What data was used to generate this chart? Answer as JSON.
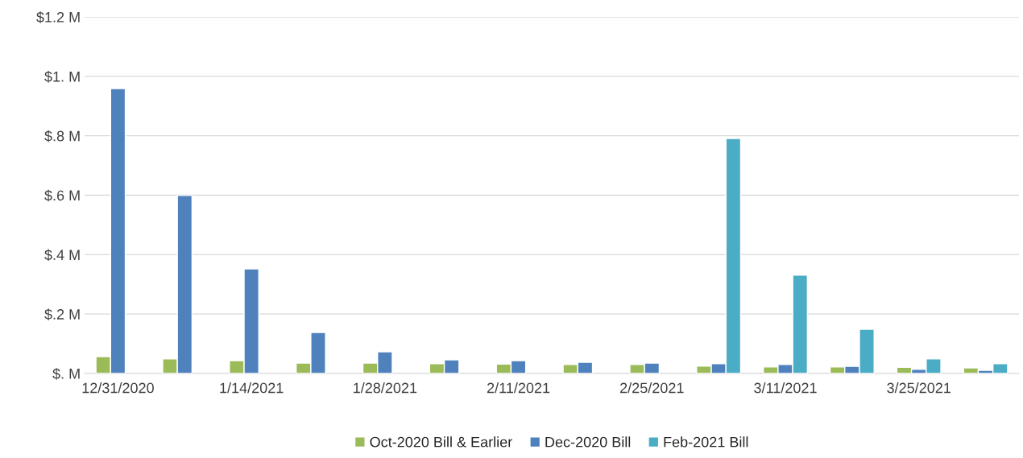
{
  "chart_data": {
    "type": "bar",
    "categories": [
      "12/31/2020",
      null,
      "1/14/2021",
      null,
      "1/28/2021",
      null,
      "2/11/2021",
      null,
      "2/25/2021",
      null,
      "3/11/2021",
      null,
      "3/25/2021",
      null
    ],
    "series": [
      {
        "name": "Oct-2020 Bill & Earlier",
        "color": "#9bbb59",
        "values": [
          0.057,
          0.049,
          0.043,
          0.035,
          0.035,
          0.033,
          0.032,
          0.03,
          0.03,
          0.025,
          0.022,
          0.022,
          0.021,
          0.019
        ]
      },
      {
        "name": "Dec-2020 Bill",
        "color": "#4f81bd",
        "values": [
          0.959,
          0.599,
          0.352,
          0.138,
          0.073,
          0.046,
          0.043,
          0.038,
          0.035,
          0.033,
          0.03,
          0.024,
          0.014,
          0.011
        ]
      },
      {
        "name": "Feb-2021 Bill",
        "color": "#4bacc6",
        "values": [
          null,
          null,
          null,
          null,
          null,
          null,
          null,
          null,
          null,
          0.791,
          0.331,
          0.149,
          0.049,
          0.033
        ]
      }
    ],
    "ylim": [
      0,
      1.2
    ],
    "yticks": [
      {
        "value": 0,
        "label": "$. M"
      },
      {
        "value": 0.2,
        "label": "$.2 M"
      },
      {
        "value": 0.4,
        "label": "$.4 M"
      },
      {
        "value": 0.6,
        "label": "$.6 M"
      },
      {
        "value": 0.8,
        "label": "$.8 M"
      },
      {
        "value": 1.0,
        "label": "$1. M"
      },
      {
        "value": 1.2,
        "label": "$1.2 M"
      }
    ],
    "grid": "y",
    "legend": "bottom"
  }
}
